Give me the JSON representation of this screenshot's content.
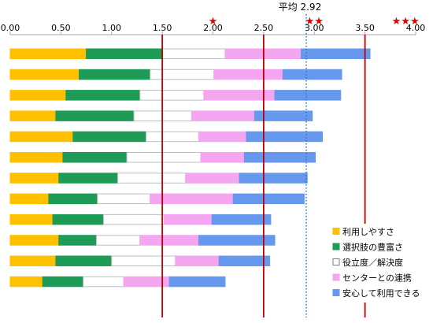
{
  "chart_data": {
    "type": "bar",
    "orientation": "horizontal",
    "stacked": true,
    "xlim": [
      0,
      4.0
    ],
    "x_ticks": [
      "0.00",
      "0.50",
      "1.00",
      "1.50",
      "2.00",
      "2.50",
      "3.00",
      "3.50",
      "4.00"
    ],
    "grid": false,
    "average_line": {
      "label": "平均 2.92",
      "value": 2.92
    },
    "threshold_lines": [
      {
        "value": 1.5,
        "color": "#c00000"
      },
      {
        "value": 2.5,
        "color": "#c00000"
      },
      {
        "value": 3.5,
        "color": "#c00000"
      }
    ],
    "star_markers": [
      {
        "stars": "★",
        "value": 2.0
      },
      {
        "stars": "★★",
        "value": 3.0
      },
      {
        "stars": "★★★",
        "value": 3.9
      }
    ],
    "series": [
      {
        "name": "利用しやすさ",
        "color": "#ffc000",
        "values": [
          0.75,
          0.68,
          0.55,
          0.45,
          0.62,
          0.52,
          0.48,
          0.38,
          0.42,
          0.48,
          0.45,
          0.32
        ]
      },
      {
        "name": "選択肢の豊富さ",
        "color": "#1e9b57",
        "values": [
          0.75,
          0.7,
          0.73,
          0.77,
          0.72,
          0.63,
          0.58,
          0.48,
          0.5,
          0.37,
          0.55,
          0.4
        ]
      },
      {
        "name": "役立度／解決度",
        "color": "#ffffff",
        "values": [
          0.62,
          0.63,
          0.63,
          0.57,
          0.52,
          0.73,
          0.67,
          0.52,
          0.6,
          0.43,
          0.63,
          0.4
        ]
      },
      {
        "name": "センターとの連携",
        "color": "#f4a6f0",
        "values": [
          0.75,
          0.68,
          0.7,
          0.62,
          0.47,
          0.43,
          0.53,
          0.82,
          0.47,
          0.58,
          0.43,
          0.45
        ]
      },
      {
        "name": "安心して利用できる",
        "color": "#6699ee",
        "values": [
          0.68,
          0.58,
          0.65,
          0.57,
          0.75,
          0.7,
          0.67,
          0.7,
          0.58,
          0.75,
          0.5,
          0.55
        ]
      }
    ]
  }
}
